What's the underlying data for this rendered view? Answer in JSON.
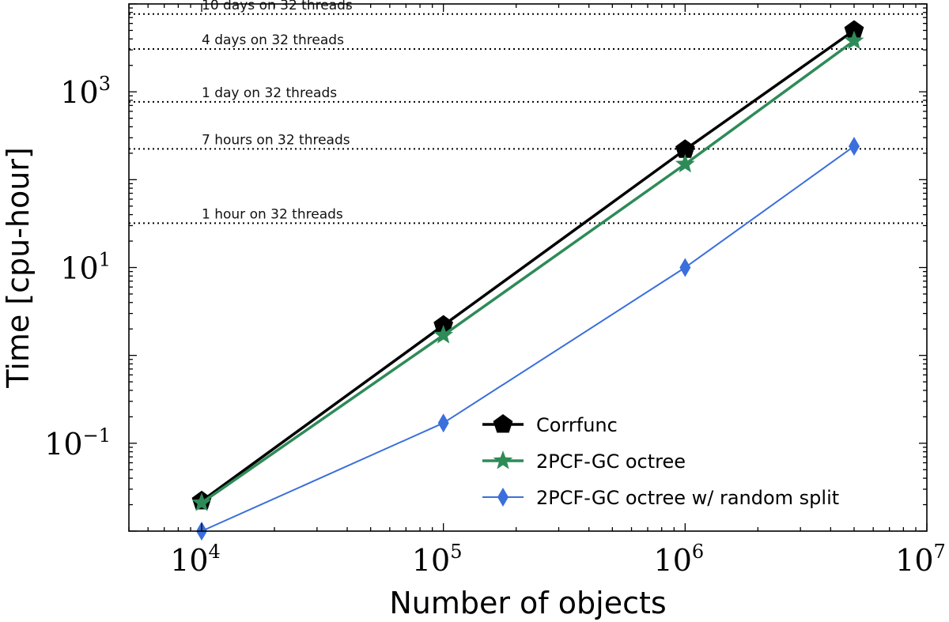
{
  "chart_data": {
    "type": "line",
    "xscale": "log",
    "yscale": "log",
    "xlim": [
      5000,
      10000000
    ],
    "ylim": [
      0.01,
      10000
    ],
    "xlabel": "Number of objects",
    "ylabel": "Time [cpu-hour]",
    "x_ticks": [
      {
        "base": "10",
        "exp": "4",
        "value": 10000
      },
      {
        "base": "10",
        "exp": "5",
        "value": 100000
      },
      {
        "base": "10",
        "exp": "6",
        "value": 1000000
      },
      {
        "base": "10",
        "exp": "7",
        "value": 10000000
      }
    ],
    "y_ticks": [
      {
        "base": "10",
        "exp": "−1",
        "value": 0.1
      },
      {
        "base": "10",
        "exp": "1",
        "value": 10
      },
      {
        "base": "10",
        "exp": "3",
        "value": 1000
      }
    ],
    "reference_lines": [
      {
        "label": "10 days on 32 threads",
        "value": 7680
      },
      {
        "label": "4 days on 32 threads",
        "value": 3072
      },
      {
        "label": "1 day on 32 threads",
        "value": 768
      },
      {
        "label": "7 hours on 32 threads",
        "value": 224
      },
      {
        "label": "1 hour on 32 threads",
        "value": 32
      }
    ],
    "series": [
      {
        "name": "Corrfunc",
        "color": "#000000",
        "marker": "pentagon",
        "x": [
          10000,
          100000,
          1000000,
          5000000
        ],
        "y": [
          0.022,
          2.2,
          220,
          5000
        ]
      },
      {
        "name": "2PCF-GC octree",
        "color": "#2e8b57",
        "marker": "star",
        "x": [
          10000,
          100000,
          1000000,
          5000000
        ],
        "y": [
          0.021,
          1.7,
          150,
          3800
        ]
      },
      {
        "name": "2PCF-GC octree w/ random split",
        "color": "#3a6fdc",
        "marker": "diamond",
        "x": [
          10000,
          100000,
          1000000,
          5000000
        ],
        "y": [
          0.01,
          0.17,
          10,
          240
        ]
      }
    ],
    "legend_position": "lower-right"
  }
}
